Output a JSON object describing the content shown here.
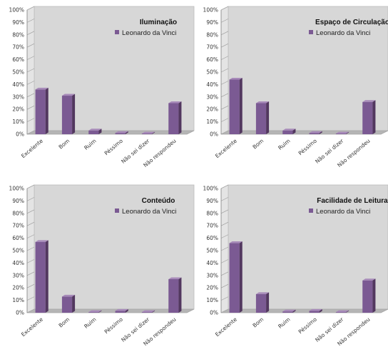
{
  "colors": {
    "bar": "#7b5a93",
    "bar_side": "#52375f",
    "bar_top": "#a78ab9",
    "wall": "#d7d7d7",
    "floor": "#b5b5b5",
    "grid": "#9a9a9a"
  },
  "chart_data": [
    {
      "type": "bar",
      "title": "Iluminação",
      "categories": [
        "Excelente",
        "Bom",
        "Ruim",
        "Péssimo",
        "Não sei dizer",
        "Não respondeu"
      ],
      "series": [
        {
          "name": "Leonardo da Vinci",
          "values": [
            36,
            31,
            3,
            1,
            0.5,
            25
          ]
        }
      ],
      "yticks": [
        "0%",
        "10%",
        "20%",
        "30%",
        "40%",
        "50%",
        "60%",
        "70%",
        "80%",
        "90%",
        "100%"
      ],
      "ylim": [
        0,
        100
      ],
      "legend": "top-right"
    },
    {
      "type": "bar",
      "title": "Espaço de Circulação",
      "categories": [
        "Excelente",
        "Bom",
        "Ruim",
        "Péssimo",
        "Não sei dizer",
        "Não respondeu"
      ],
      "series": [
        {
          "name": "Leonardo da Vinci",
          "values": [
            44,
            25,
            3,
            1,
            0.5,
            26
          ]
        }
      ],
      "yticks": [
        "0%",
        "10%",
        "20%",
        "30%",
        "40%",
        "50%",
        "60%",
        "70%",
        "80%",
        "90%",
        "100%"
      ],
      "ylim": [
        0,
        100
      ],
      "legend": "top-right"
    },
    {
      "type": "bar",
      "title": "Conteúdo",
      "categories": [
        "Excelente",
        "Bom",
        "Ruim",
        "Péssimo",
        "Não sei dizer",
        "Não respondeu"
      ],
      "series": [
        {
          "name": "Leonardo da Vinci",
          "values": [
            57,
            13,
            0.5,
            1.5,
            0.5,
            27
          ]
        }
      ],
      "yticks": [
        "0%",
        "10%",
        "20%",
        "30%",
        "40%",
        "50%",
        "60%",
        "70%",
        "80%",
        "90%",
        "100%"
      ],
      "ylim": [
        0,
        100
      ],
      "legend": "top-right"
    },
    {
      "type": "bar",
      "title": "Facilidade de Leitura",
      "categories": [
        "Excelente",
        "Bom",
        "Ruim",
        "Péssimo",
        "Não sei dizer",
        "Não respondeu"
      ],
      "series": [
        {
          "name": "Leonardo da Vinci",
          "values": [
            56,
            15,
            1,
            1.5,
            0.5,
            26
          ]
        }
      ],
      "yticks": [
        "0%",
        "10%",
        "20%",
        "30%",
        "40%",
        "50%",
        "60%",
        "70%",
        "80%",
        "90%",
        "100%"
      ],
      "ylim": [
        0,
        100
      ],
      "legend": "top-right"
    }
  ]
}
